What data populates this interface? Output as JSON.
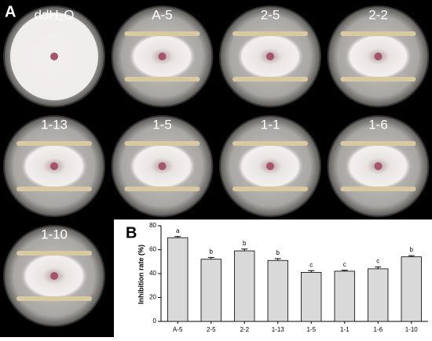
{
  "panel_a": {
    "label": "A",
    "plates": [
      "ddH₂O",
      "A-5",
      "2-5",
      "2-2",
      "1-13",
      "1-5",
      "1-1",
      "1-6",
      "1-10"
    ]
  },
  "chart_data": {
    "type": "bar",
    "panel_label": "B",
    "y_label": "Inhibition rate (%)",
    "categories": [
      "A-5",
      "2-5",
      "2-2",
      "1-13",
      "1-5",
      "1-1",
      "1-6",
      "1-10"
    ],
    "values": [
      70,
      52,
      59,
      51,
      41,
      42,
      44,
      54
    ],
    "errors": [
      1,
      1.5,
      1.5,
      1.5,
      1.5,
      0.8,
      1.5,
      1
    ],
    "significance": [
      "a",
      "b",
      "b",
      "b",
      "c",
      "c",
      "c",
      "b"
    ],
    "color": "#d9d9d9",
    "ylim": [
      0,
      80
    ],
    "yticks": [
      0,
      20,
      40,
      60,
      80
    ]
  }
}
